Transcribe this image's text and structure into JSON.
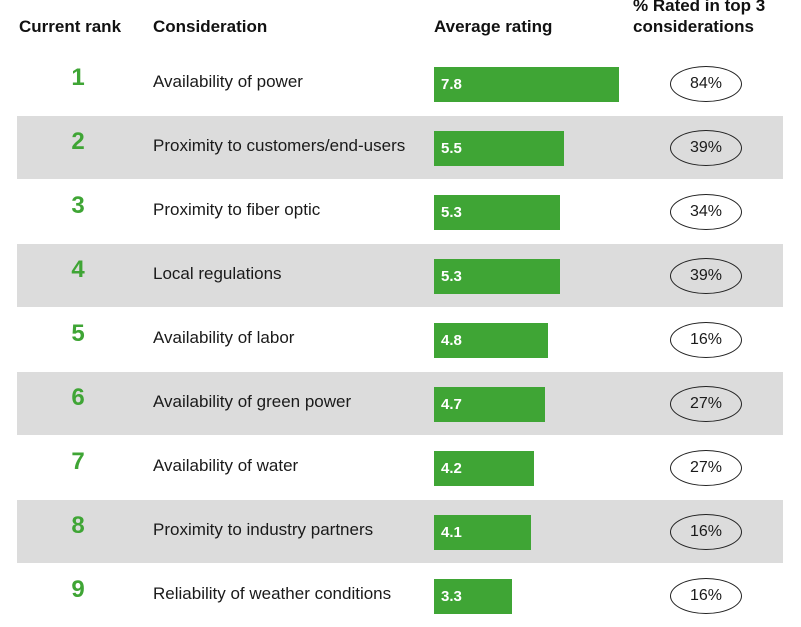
{
  "headers": {
    "rank": "Current rank",
    "consideration": "Consideration",
    "average": "Average rating",
    "pct_line1": "% Rated in top 3",
    "pct_line2": "considerations"
  },
  "colors": {
    "bar": "#3fa535",
    "rank": "#3fa535",
    "shade": "#dcdcdc"
  },
  "chart_data": {
    "type": "table",
    "columns": [
      "Current rank",
      "Consideration",
      "Average rating",
      "% Rated in top 3 considerations"
    ],
    "rows": [
      {
        "rank": "1",
        "consideration": "Availability of power",
        "rating": 7.8,
        "pct": "84%"
      },
      {
        "rank": "2",
        "consideration": "Proximity to customers/end-users",
        "rating": 5.5,
        "pct": "39%"
      },
      {
        "rank": "3",
        "consideration": "Proximity to fiber optic",
        "rating": 5.3,
        "pct": "34%"
      },
      {
        "rank": "4",
        "consideration": "Local regulations",
        "rating": 5.3,
        "pct": "39%"
      },
      {
        "rank": "5",
        "consideration": "Availability of labor",
        "rating": 4.8,
        "pct": "16%"
      },
      {
        "rank": "6",
        "consideration": "Availability of green power",
        "rating": 4.7,
        "pct": "27%"
      },
      {
        "rank": "7",
        "consideration": "Availability of water",
        "rating": 4.2,
        "pct": "27%"
      },
      {
        "rank": "8",
        "consideration": "Proximity to industry partners",
        "rating": 4.1,
        "pct": "16%"
      },
      {
        "rank": "9",
        "consideration": "Reliability of weather conditions",
        "rating": 3.3,
        "pct": "16%"
      }
    ],
    "rating_max": 7.8
  }
}
